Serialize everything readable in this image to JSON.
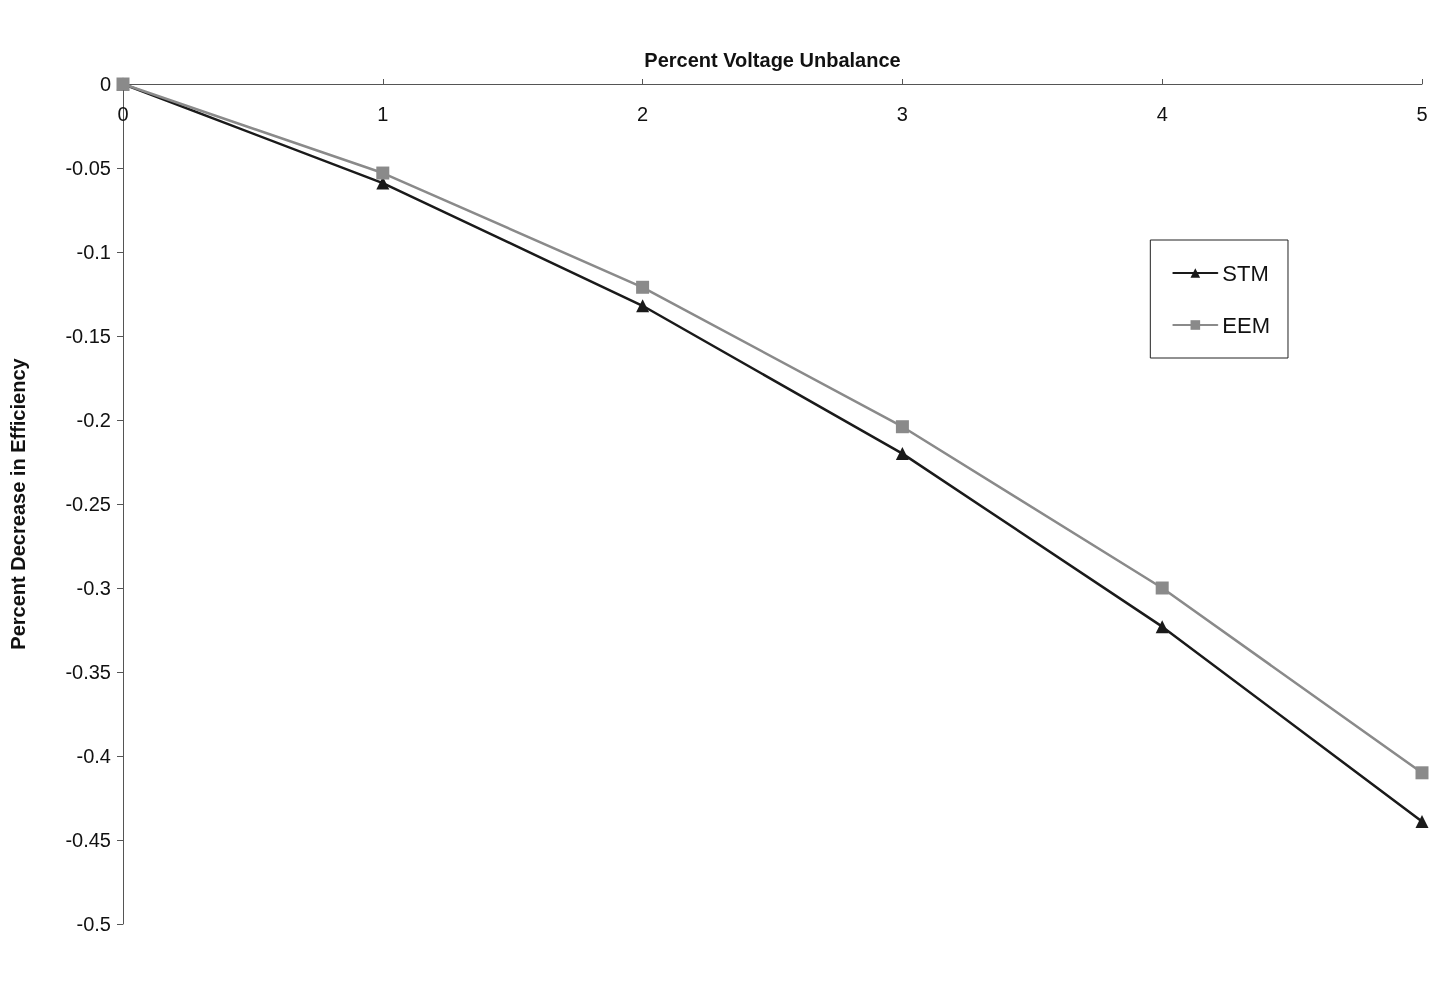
{
  "chart_data": {
    "type": "line",
    "xlabel": "Percent Voltage Unbalance",
    "ylabel": "Percent Decrease in Efficiency",
    "x": [
      0,
      1,
      2,
      3,
      4,
      5
    ],
    "series": [
      {
        "name": "STM",
        "color": "#1a1a1a",
        "marker": "triangle",
        "values": [
          0,
          -0.059,
          -0.132,
          -0.22,
          -0.323,
          -0.439
        ]
      },
      {
        "name": "EEM",
        "color": "#8a8a8a",
        "marker": "square",
        "values": [
          0,
          -0.053,
          -0.121,
          -0.204,
          -0.3,
          -0.41
        ]
      }
    ],
    "xlim": [
      0,
      5
    ],
    "xticks": [
      0,
      1,
      2,
      3,
      4,
      5
    ],
    "ylim": [
      -0.5,
      0
    ],
    "yticks": [
      -0.5,
      -0.45,
      -0.4,
      -0.35,
      -0.3,
      -0.25,
      -0.2,
      -0.15,
      -0.1,
      -0.05,
      0
    ],
    "grid": false,
    "legend": "right",
    "line_style": "solid"
  }
}
